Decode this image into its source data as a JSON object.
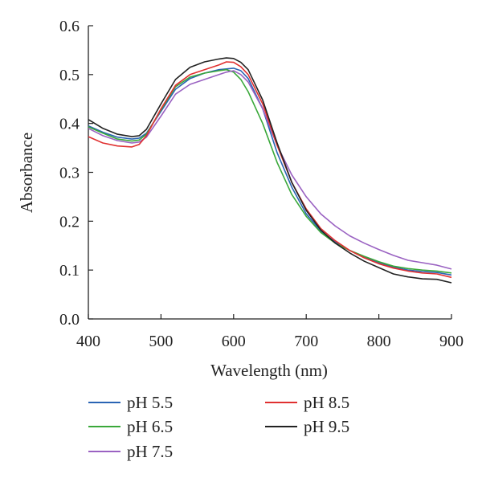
{
  "chart_data": {
    "type": "line",
    "title": "",
    "xlabel": "Wavelength (nm)",
    "ylabel": "Absorbance",
    "xlim": [
      400,
      900
    ],
    "ylim": [
      0.0,
      0.6
    ],
    "xticks": [
      400,
      500,
      600,
      700,
      800,
      900
    ],
    "xtick_labels": [
      "400",
      "500",
      "600",
      "700",
      "800",
      "900"
    ],
    "yticks": [
      0.0,
      0.1,
      0.2,
      0.3,
      0.4,
      0.5,
      0.6
    ],
    "ytick_labels": [
      "0.0",
      "0.1",
      "0.2",
      "0.3",
      "0.4",
      "0.5",
      "0.6"
    ],
    "grid": false,
    "legend_position": "bottom",
    "series": [
      {
        "name": "pH 5.5",
        "color": "#2a64b4",
        "x": [
          400,
          420,
          440,
          460,
          470,
          480,
          500,
          520,
          540,
          560,
          580,
          600,
          610,
          620,
          640,
          660,
          680,
          700,
          720,
          740,
          760,
          780,
          800,
          820,
          840,
          860,
          880,
          900
        ],
        "y": [
          0.395,
          0.382,
          0.372,
          0.368,
          0.37,
          0.38,
          0.425,
          0.47,
          0.492,
          0.503,
          0.51,
          0.513,
          0.508,
          0.492,
          0.43,
          0.34,
          0.27,
          0.215,
          0.18,
          0.157,
          0.14,
          0.127,
          0.115,
          0.106,
          0.1,
          0.097,
          0.095,
          0.09
        ]
      },
      {
        "name": "pH 6.5",
        "color": "#3aa83a",
        "x": [
          400,
          420,
          440,
          460,
          470,
          480,
          500,
          520,
          540,
          560,
          580,
          590,
          600,
          610,
          620,
          640,
          660,
          680,
          700,
          720,
          740,
          760,
          780,
          800,
          820,
          840,
          860,
          880,
          900
        ],
        "y": [
          0.393,
          0.38,
          0.368,
          0.364,
          0.366,
          0.378,
          0.428,
          0.475,
          0.495,
          0.503,
          0.508,
          0.51,
          0.505,
          0.49,
          0.465,
          0.4,
          0.32,
          0.255,
          0.21,
          0.177,
          0.155,
          0.14,
          0.128,
          0.117,
          0.108,
          0.103,
          0.1,
          0.098,
          0.094
        ]
      },
      {
        "name": "pH 7.5",
        "color": "#9a62c2",
        "x": [
          400,
          420,
          440,
          460,
          470,
          480,
          500,
          520,
          540,
          560,
          580,
          590,
          600,
          610,
          620,
          640,
          660,
          680,
          700,
          720,
          740,
          760,
          780,
          800,
          820,
          840,
          860,
          880,
          900
        ],
        "y": [
          0.39,
          0.375,
          0.365,
          0.36,
          0.362,
          0.372,
          0.415,
          0.46,
          0.48,
          0.49,
          0.5,
          0.505,
          0.508,
          0.5,
          0.485,
          0.43,
          0.355,
          0.295,
          0.25,
          0.215,
          0.19,
          0.17,
          0.155,
          0.142,
          0.13,
          0.12,
          0.115,
          0.11,
          0.102
        ]
      },
      {
        "name": "pH 8.5",
        "color": "#e03030",
        "x": [
          400,
          420,
          440,
          460,
          470,
          480,
          500,
          520,
          540,
          560,
          580,
          590,
          600,
          610,
          620,
          640,
          660,
          680,
          700,
          720,
          740,
          760,
          780,
          800,
          820,
          840,
          860,
          880,
          900
        ],
        "y": [
          0.373,
          0.36,
          0.354,
          0.352,
          0.357,
          0.375,
          0.43,
          0.478,
          0.5,
          0.51,
          0.52,
          0.526,
          0.525,
          0.516,
          0.5,
          0.44,
          0.355,
          0.28,
          0.225,
          0.185,
          0.16,
          0.14,
          0.125,
          0.113,
          0.104,
          0.098,
          0.094,
          0.092,
          0.085
        ]
      },
      {
        "name": "pH 9.5",
        "color": "#222222",
        "x": [
          400,
          420,
          440,
          460,
          470,
          480,
          500,
          520,
          540,
          560,
          580,
          590,
          600,
          610,
          620,
          640,
          660,
          680,
          700,
          720,
          740,
          760,
          780,
          800,
          820,
          840,
          860,
          880,
          900
        ],
        "y": [
          0.408,
          0.39,
          0.378,
          0.373,
          0.375,
          0.388,
          0.44,
          0.49,
          0.515,
          0.526,
          0.532,
          0.534,
          0.533,
          0.525,
          0.51,
          0.448,
          0.36,
          0.28,
          0.222,
          0.182,
          0.155,
          0.135,
          0.118,
          0.105,
          0.092,
          0.086,
          0.082,
          0.081,
          0.074
        ]
      }
    ]
  }
}
